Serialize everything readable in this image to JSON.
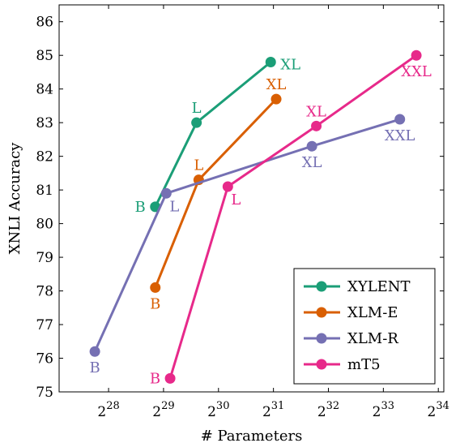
{
  "chart_data": {
    "type": "line",
    "xlabel": "# Parameters",
    "ylabel": "XNLI Accuracy",
    "x_scale": "log2",
    "xlim_exp": [
      27.1,
      34.1
    ],
    "ylim": [
      75,
      86.5
    ],
    "x_ticks": [
      {
        "base": "2",
        "exp": "28",
        "value_exp": 28
      },
      {
        "base": "2",
        "exp": "29",
        "value_exp": 29
      },
      {
        "base": "2",
        "exp": "30",
        "value_exp": 30
      },
      {
        "base": "2",
        "exp": "31",
        "value_exp": 31
      },
      {
        "base": "2",
        "exp": "32",
        "value_exp": 32
      },
      {
        "base": "2",
        "exp": "33",
        "value_exp": 33
      },
      {
        "base": "2",
        "exp": "34",
        "value_exp": 34
      }
    ],
    "y_ticks": [
      "75",
      "76",
      "77",
      "78",
      "79",
      "80",
      "81",
      "82",
      "83",
      "84",
      "85",
      "86"
    ],
    "legend_position": "bottom-right",
    "series": [
      {
        "name": "XYLENT",
        "color": "#1b9e77",
        "points": [
          {
            "x_exp": 28.85,
            "y": 80.5,
            "label": "B",
            "label_pos": "left"
          },
          {
            "x_exp": 29.6,
            "y": 83.0,
            "label": "L",
            "label_pos": "above"
          },
          {
            "x_exp": 30.95,
            "y": 84.8,
            "label": "XL",
            "label_pos": "right"
          }
        ]
      },
      {
        "name": "XLM-E",
        "color": "#d95f02",
        "points": [
          {
            "x_exp": 28.85,
            "y": 78.1,
            "label": "B",
            "label_pos": "below"
          },
          {
            "x_exp": 29.64,
            "y": 81.3,
            "label": "L",
            "label_pos": "above"
          },
          {
            "x_exp": 31.05,
            "y": 83.7,
            "label": "XL",
            "label_pos": "above"
          }
        ]
      },
      {
        "name": "XLM-R",
        "color": "#7570b3",
        "points": [
          {
            "x_exp": 27.75,
            "y": 76.2,
            "label": "B",
            "label_pos": "below"
          },
          {
            "x_exp": 29.05,
            "y": 80.9,
            "label": "L",
            "label_pos": "below-right"
          },
          {
            "x_exp": 31.7,
            "y": 82.3,
            "label": "XL",
            "label_pos": "below"
          },
          {
            "x_exp": 33.3,
            "y": 83.1,
            "label": "XXL",
            "label_pos": "below"
          }
        ]
      },
      {
        "name": "mT5",
        "color": "#e7298a",
        "points": [
          {
            "x_exp": 29.12,
            "y": 75.4,
            "label": "B",
            "label_pos": "left"
          },
          {
            "x_exp": 30.17,
            "y": 81.1,
            "label": "L",
            "label_pos": "below-right"
          },
          {
            "x_exp": 31.78,
            "y": 82.9,
            "label": "XL",
            "label_pos": "above"
          },
          {
            "x_exp": 33.6,
            "y": 85.0,
            "label": "XXL",
            "label_pos": "below"
          }
        ]
      }
    ]
  }
}
